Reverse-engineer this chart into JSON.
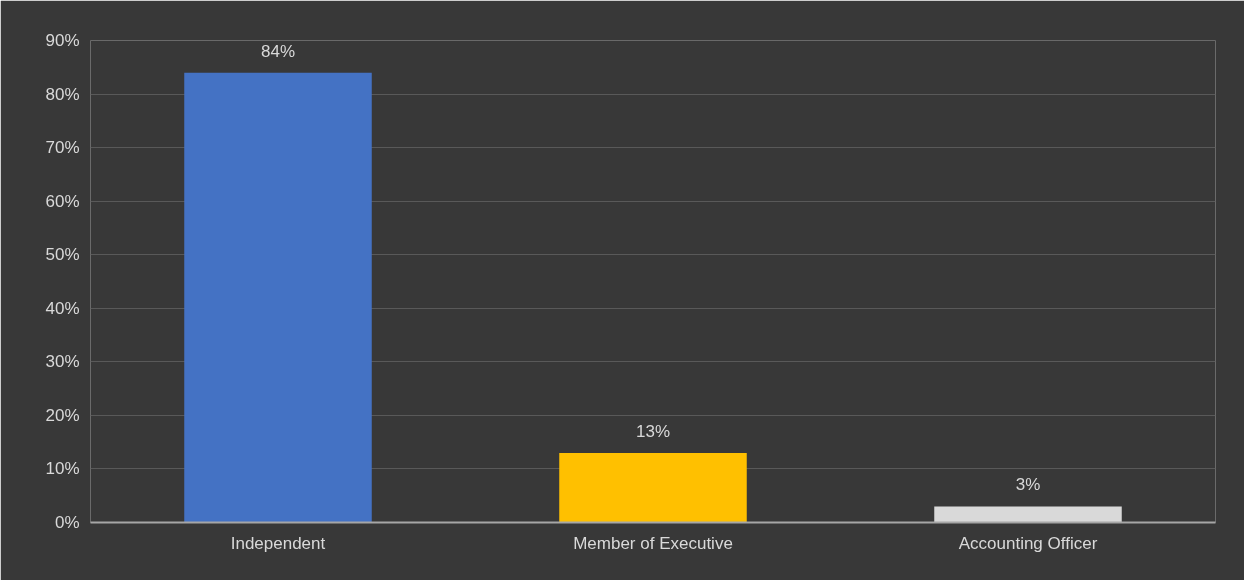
{
  "chart_data": {
    "type": "bar",
    "categories": [
      "Independent",
      "Member of Executive",
      "Accounting Officer"
    ],
    "values": [
      84,
      13,
      3
    ],
    "colors": [
      "#4472c4",
      "#ffc000",
      "#d9d9d9"
    ],
    "value_labels": [
      "84%",
      "13%",
      "3%"
    ],
    "ylim": [
      0,
      90
    ],
    "yticks": [
      {
        "value": 0,
        "label": "0%"
      },
      {
        "value": 10,
        "label": "10%"
      },
      {
        "value": 20,
        "label": "20%"
      },
      {
        "value": 30,
        "label": "30%"
      },
      {
        "value": 40,
        "label": "40%"
      },
      {
        "value": 50,
        "label": "50%"
      },
      {
        "value": 60,
        "label": "60%"
      },
      {
        "value": 70,
        "label": "70%"
      },
      {
        "value": 80,
        "label": "80%"
      },
      {
        "value": 90,
        "label": "90%"
      }
    ],
    "grid": "y"
  }
}
